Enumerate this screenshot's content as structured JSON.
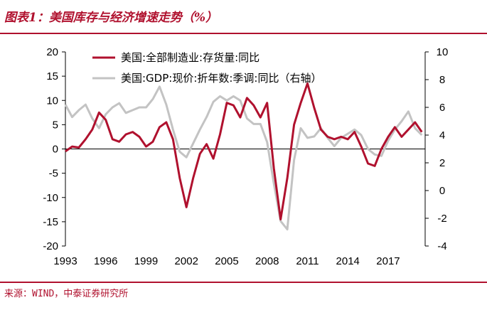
{
  "header": {
    "title": "图表1：美国库存与经济增速走势（%）"
  },
  "footer": {
    "source": "来源：WIND，中泰证券研究所"
  },
  "chart_data": {
    "type": "line",
    "title": "图表1：美国库存与经济增速走势（%）",
    "x_tick_labels": [
      "1993",
      "1996",
      "1999",
      "2002",
      "2005",
      "2008",
      "2011",
      "2014",
      "2017"
    ],
    "left_axis": {
      "ylim": [
        -20,
        20
      ],
      "ticks": [
        -20,
        -15,
        -10,
        -5,
        0,
        5,
        10,
        15,
        20
      ]
    },
    "right_axis": {
      "ylim": [
        -4,
        10
      ],
      "ticks": [
        -4,
        -2,
        0,
        2,
        4,
        6,
        8,
        10
      ]
    },
    "legend_position": "top-center",
    "series": [
      {
        "name": "美国:全部制造业:存货量:同比",
        "axis": "left",
        "color": "#b0112e",
        "x": [
          1993.0,
          1993.5,
          1994.0,
          1994.5,
          1995.0,
          1995.5,
          1996.0,
          1996.5,
          1997.0,
          1997.5,
          1998.0,
          1998.5,
          1999.0,
          1999.5,
          2000.0,
          2000.5,
          2001.0,
          2001.5,
          2002.0,
          2002.5,
          2003.0,
          2003.5,
          2004.0,
          2004.5,
          2005.0,
          2005.5,
          2006.0,
          2006.5,
          2007.0,
          2007.5,
          2008.0,
          2008.5,
          2009.0,
          2009.5,
          2010.0,
          2010.5,
          2011.0,
          2011.5,
          2012.0,
          2012.5,
          2013.0,
          2013.5,
          2014.0,
          2014.5,
          2015.0,
          2015.5,
          2016.0,
          2016.5,
          2017.0,
          2017.5,
          2018.0,
          2018.5,
          2019.0,
          2019.5
        ],
        "values": [
          -0.5,
          0.5,
          0.3,
          2.0,
          4.0,
          7.5,
          6.0,
          2.0,
          1.5,
          3.0,
          3.5,
          2.5,
          0.5,
          1.5,
          4.5,
          5.5,
          2.0,
          -6.0,
          -12.0,
          -6.0,
          -1.0,
          1.0,
          -2.0,
          3.0,
          9.5,
          9.0,
          6.5,
          10.5,
          9.0,
          6.5,
          9.5,
          -4.0,
          -14.5,
          -6.0,
          5.0,
          9.5,
          13.5,
          8.5,
          4.0,
          2.5,
          2.0,
          2.5,
          2.0,
          3.5,
          0.5,
          -3.0,
          -3.5,
          0.0,
          2.5,
          4.5,
          2.5,
          4.0,
          5.5,
          3.5
        ]
      },
      {
        "name": "美国:GDP:现价:折年数:季调:同比（右轴）",
        "axis": "right",
        "color": "#c3c3c3",
        "x": [
          1993.0,
          1993.5,
          1994.0,
          1994.5,
          1995.0,
          1995.5,
          1996.0,
          1996.5,
          1997.0,
          1997.5,
          1998.0,
          1998.5,
          1999.0,
          1999.5,
          2000.0,
          2000.5,
          2001.0,
          2001.5,
          2002.0,
          2002.5,
          2003.0,
          2003.5,
          2004.0,
          2004.5,
          2005.0,
          2005.5,
          2006.0,
          2006.5,
          2007.0,
          2007.5,
          2008.0,
          2008.5,
          2009.0,
          2009.5,
          2010.0,
          2010.5,
          2011.0,
          2011.5,
          2012.0,
          2012.5,
          2013.0,
          2013.5,
          2014.0,
          2014.5,
          2015.0,
          2015.5,
          2016.0,
          2016.5,
          2017.0,
          2017.5,
          2018.0,
          2018.5,
          2019.0,
          2019.5
        ],
        "values": [
          6.2,
          5.3,
          5.8,
          6.2,
          5.2,
          4.5,
          5.5,
          6.0,
          6.3,
          5.6,
          5.8,
          6.0,
          6.0,
          6.6,
          7.5,
          6.2,
          4.4,
          2.8,
          2.4,
          3.4,
          4.4,
          5.3,
          6.4,
          6.8,
          6.5,
          6.8,
          6.5,
          5.2,
          4.8,
          4.8,
          3.5,
          0.5,
          -2.2,
          -2.8,
          2.2,
          4.5,
          3.8,
          3.9,
          4.5,
          3.8,
          3.2,
          3.8,
          4.1,
          4.4,
          4.0,
          3.0,
          2.6,
          2.5,
          3.6,
          4.4,
          5.0,
          5.7,
          4.5,
          4.0
        ]
      }
    ]
  }
}
